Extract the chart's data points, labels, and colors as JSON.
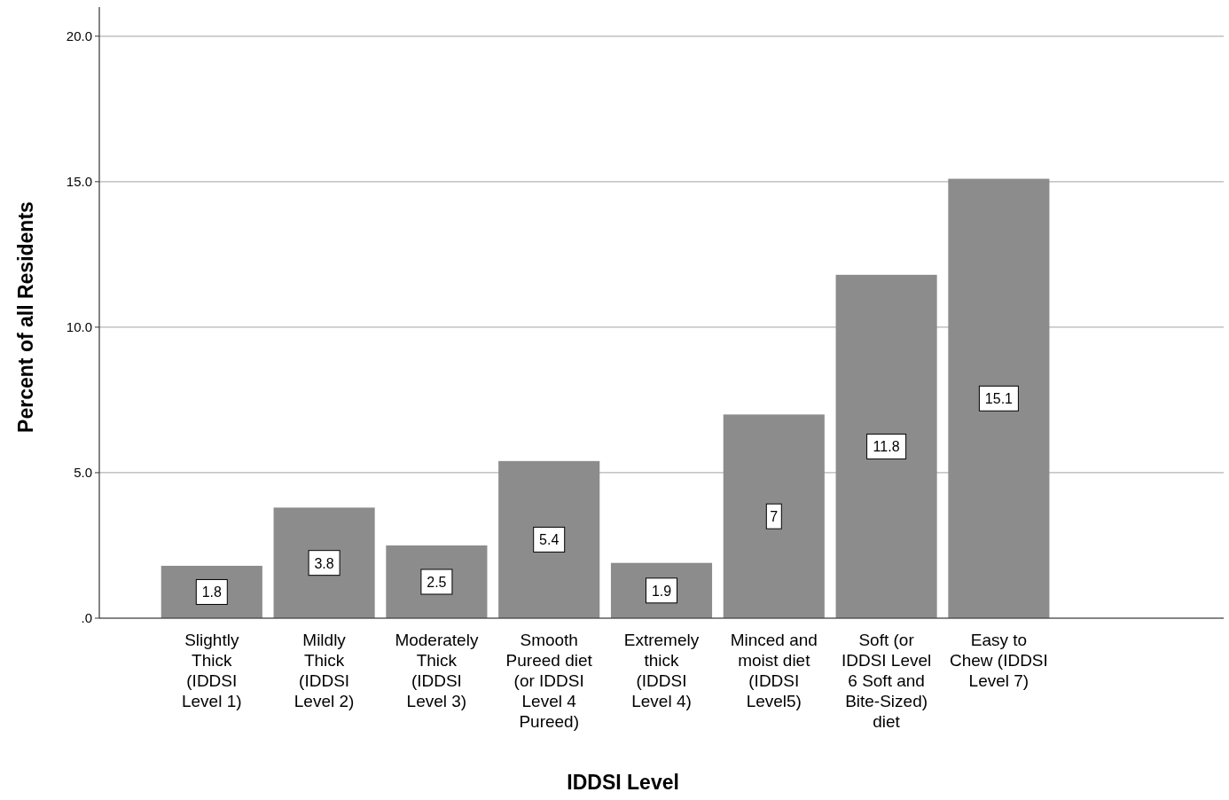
{
  "chart_data": {
    "type": "bar",
    "xlabel": "IDDSI Level",
    "ylabel": "Percent of all Residents",
    "categories": [
      "Slightly Thick (IDDSI Level 1)",
      "Mildly Thick (IDDSI Level 2)",
      "Moderately Thick (IDDSI Level 3)",
      "Smooth Pureed diet (or IDDSI Level 4 Pureed)",
      "Extremely thick (IDDSI Level 4)",
      "Minced and moist diet (IDDSI Level5)",
      "Soft (or IDDSI Level 6 Soft and Bite-Sized) diet",
      "Easy to Chew (IDDSI Level 7)"
    ],
    "values": [
      1.8,
      3.8,
      2.5,
      5.4,
      1.9,
      7,
      11.8,
      15.1
    ],
    "color": "#8c8c8c",
    "data_labels": true,
    "grid": "y",
    "ylim": [
      0,
      21
    ],
    "yticks": [
      {
        "value": 0,
        "label": ".0"
      },
      {
        "value": 5,
        "label": "5.0"
      },
      {
        "value": 10,
        "label": "10.0"
      },
      {
        "value": 15,
        "label": "15.0"
      },
      {
        "value": 20,
        "label": "20.0"
      }
    ]
  }
}
